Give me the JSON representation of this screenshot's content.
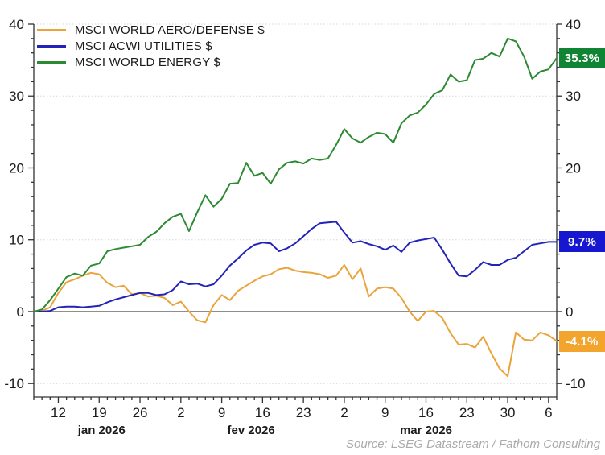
{
  "chart_data": {
    "type": "line",
    "title": "",
    "source": "Source: LSEG Datastream / Fathom Consulting",
    "ylim": [
      -10,
      40
    ],
    "y_major_ticks": [
      -10,
      0,
      10,
      20,
      30,
      40
    ],
    "y_minor_step": 2,
    "grid": "dotted horizontal at major ticks, solid line at zero",
    "legend_position": "top-left inside plot",
    "x_dates": [
      "2026-01-07",
      "2026-01-08",
      "2026-01-09",
      "2026-01-12",
      "2026-01-13",
      "2026-01-14",
      "2026-01-15",
      "2026-01-16",
      "2026-01-19",
      "2026-01-20",
      "2026-01-21",
      "2026-01-22",
      "2026-01-23",
      "2026-01-26",
      "2026-01-27",
      "2026-01-28",
      "2026-01-29",
      "2026-01-30",
      "2026-02-02",
      "2026-02-03",
      "2026-02-04",
      "2026-02-05",
      "2026-02-06",
      "2026-02-09",
      "2026-02-10",
      "2026-02-11",
      "2026-02-12",
      "2026-02-13",
      "2026-02-16",
      "2026-02-17",
      "2026-02-18",
      "2026-02-19",
      "2026-02-20",
      "2026-02-23",
      "2026-02-24",
      "2026-02-25",
      "2026-02-26",
      "2026-02-27",
      "2026-03-02",
      "2026-03-03",
      "2026-03-04",
      "2026-03-05",
      "2026-03-06",
      "2026-03-09",
      "2026-03-10",
      "2026-03-11",
      "2026-03-12",
      "2026-03-13",
      "2026-03-16",
      "2026-03-17",
      "2026-03-18",
      "2026-03-19",
      "2026-03-20",
      "2026-03-23",
      "2026-03-24",
      "2026-03-25",
      "2026-03-26",
      "2026-03-27",
      "2026-03-30",
      "2026-03-31",
      "2026-04-01",
      "2026-04-02",
      "2026-04-03",
      "2026-04-06",
      "2026-04-07"
    ],
    "x_week_ticks": [
      {
        "index": 3,
        "label": "12"
      },
      {
        "index": 8,
        "label": "19"
      },
      {
        "index": 13,
        "label": "26"
      },
      {
        "index": 18,
        "label": "2"
      },
      {
        "index": 23,
        "label": "9"
      },
      {
        "index": 28,
        "label": "16"
      },
      {
        "index": 33,
        "label": "23"
      },
      {
        "index": 38,
        "label": "2"
      },
      {
        "index": 43,
        "label": "9"
      },
      {
        "index": 48,
        "label": "16"
      },
      {
        "index": 53,
        "label": "23"
      },
      {
        "index": 58,
        "label": "30"
      },
      {
        "index": 63,
        "label": "6"
      }
    ],
    "month_labels": [
      {
        "index": 8.3,
        "label": "jan 2026"
      },
      {
        "index": 26.6,
        "label": "fev 2026"
      },
      {
        "index": 48.0,
        "label": "mar 2026"
      }
    ],
    "series": [
      {
        "name": "MSCI WORLD AERO/DEFENSE $",
        "color": "#EBA33B",
        "badge_color": "#F2A42C",
        "end_label": "-4.1%",
        "values": [
          0,
          0.1,
          0.6,
          2.6,
          4.1,
          4.5,
          5.0,
          5.4,
          5.2,
          4.0,
          3.4,
          3.6,
          2.4,
          2.6,
          2.1,
          2.2,
          1.9,
          0.9,
          1.4,
          0.0,
          -1.2,
          -1.5,
          0.9,
          2.3,
          1.6,
          2.9,
          3.6,
          4.3,
          4.9,
          5.2,
          5.9,
          6.1,
          5.7,
          5.5,
          5.4,
          5.2,
          4.7,
          5.0,
          6.5,
          4.5,
          6.0,
          2.1,
          3.2,
          3.4,
          3.2,
          1.9,
          0.0,
          -1.3,
          0.0,
          0.1,
          -0.9,
          -3.0,
          -4.6,
          -4.5,
          -5.0,
          -3.5,
          -5.8,
          -7.9,
          -9.0,
          -2.9,
          -3.9,
          -4.0,
          -2.9,
          -3.3,
          -4.1
        ]
      },
      {
        "name": "MSCI ACWI UTILITIES $",
        "color": "#2323B8",
        "badge_color": "#1717CF",
        "end_label": "9.7%",
        "values": [
          0,
          0.0,
          0.1,
          0.6,
          0.7,
          0.7,
          0.6,
          0.7,
          0.8,
          1.3,
          1.7,
          2.0,
          2.3,
          2.6,
          2.6,
          2.3,
          2.4,
          3.0,
          4.2,
          3.8,
          3.9,
          3.5,
          3.8,
          5.0,
          6.4,
          7.4,
          8.5,
          9.3,
          9.6,
          9.5,
          8.4,
          8.8,
          9.5,
          10.5,
          11.5,
          12.3,
          12.4,
          12.5,
          11.0,
          9.6,
          9.8,
          9.4,
          9.1,
          8.6,
          9.2,
          8.3,
          9.6,
          9.9,
          10.1,
          10.3,
          8.6,
          6.7,
          5.0,
          4.9,
          5.8,
          6.9,
          6.5,
          6.5,
          7.2,
          7.5,
          8.4,
          9.3,
          9.5,
          9.7,
          9.7
        ]
      },
      {
        "name": "MSCI WORLD ENERGY $",
        "color": "#2D8A33",
        "badge_color": "#0F8433",
        "end_label": "35.3%",
        "values": [
          0,
          0.3,
          1.6,
          3.2,
          4.8,
          5.3,
          5.0,
          6.4,
          6.7,
          8.4,
          8.7,
          8.9,
          9.1,
          9.3,
          10.4,
          11.1,
          12.3,
          13.2,
          13.6,
          11.2,
          13.8,
          16.2,
          14.6,
          15.7,
          17.8,
          17.9,
          20.7,
          18.9,
          19.3,
          17.8,
          19.8,
          20.7,
          20.9,
          20.6,
          21.3,
          21.1,
          21.3,
          23.2,
          25.4,
          24.1,
          23.5,
          24.3,
          24.9,
          24.7,
          23.5,
          26.2,
          27.3,
          27.7,
          28.8,
          30.3,
          30.8,
          33.0,
          32.0,
          32.2,
          35.0,
          35.2,
          36.0,
          35.5,
          38.0,
          37.6,
          35.5,
          32.4,
          33.4,
          33.7,
          35.3
        ]
      }
    ],
    "axis_color": "#333333",
    "label_color": "#1a1a1a",
    "grid_color": "#d6d6d6",
    "zero_line_color": "#4a4a4a"
  }
}
